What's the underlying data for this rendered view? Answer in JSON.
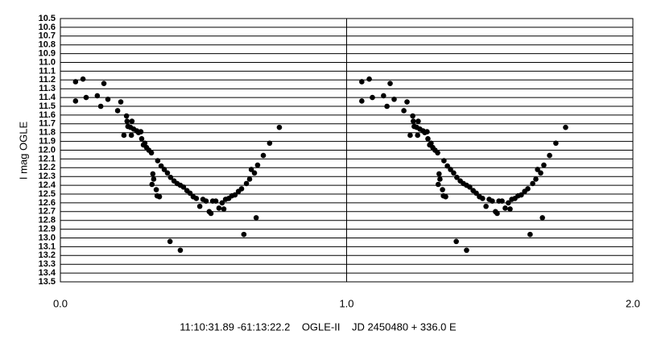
{
  "chart_data": {
    "type": "scatter",
    "xlabel": "11:10:31.89 -61:13:22.2    OGLE-II    JD 2450480 + 336.0 E",
    "ylabel": "I mag OGLE",
    "color": "#000000",
    "grid": true,
    "xlim": [
      0,
      2
    ],
    "xticks": [
      {
        "value": 0,
        "label": "0.0"
      },
      {
        "value": 1,
        "label": "1.0"
      },
      {
        "value": 2,
        "label": "2.0"
      }
    ],
    "ylim": [
      13.5,
      10.5
    ],
    "yticks": [
      10.5,
      10.6,
      10.7,
      10.8,
      10.9,
      {
        "value": 11,
        "label": "11.0"
      },
      11.1,
      11.2,
      11.3,
      11.4,
      11.5,
      11.6,
      11.7,
      11.8,
      11.9,
      {
        "value": 12,
        "label": "12.0"
      },
      12.1,
      12.2,
      12.3,
      12.4,
      12.5,
      12.6,
      12.7,
      12.8,
      12.9,
      {
        "value": 13,
        "label": "13.0"
      },
      13.1,
      13.2,
      13.3,
      13.4,
      13.5
    ],
    "x": [
      0.053,
      0.053,
      0.079,
      0.09,
      0.129,
      0.141,
      0.152,
      0.166,
      0.2,
      0.211,
      0.222,
      0.231,
      0.233,
      0.236,
      0.245,
      0.25,
      0.256,
      0.248,
      0.267,
      0.273,
      0.281,
      0.284,
      0.29,
      0.295,
      0.301,
      0.309,
      0.318,
      0.323,
      0.326,
      0.335,
      0.338,
      0.346,
      0.32,
      0.34,
      0.352,
      0.363,
      0.374,
      0.385,
      0.397,
      0.408,
      0.419,
      0.43,
      0.442,
      0.453,
      0.383,
      0.419,
      0.464,
      0.475,
      0.487,
      0.498,
      0.509,
      0.52,
      0.526,
      0.532,
      0.543,
      0.554,
      0.565,
      0.571,
      0.577,
      0.588,
      0.599,
      0.61,
      0.622,
      0.633,
      0.641,
      0.65,
      0.661,
      0.667,
      0.678,
      0.684,
      0.689,
      0.709,
      0.731,
      0.765,
      1.053,
      1.053,
      1.079,
      1.09,
      1.129,
      1.141,
      1.152,
      1.166,
      1.2,
      1.211,
      1.222,
      1.231,
      1.233,
      1.236,
      1.245,
      1.25,
      1.256,
      1.248,
      1.267,
      1.273,
      1.281,
      1.284,
      1.29,
      1.295,
      1.301,
      1.309,
      1.318,
      1.323,
      1.326,
      1.335,
      1.338,
      1.346,
      1.32,
      1.34,
      1.352,
      1.363,
      1.374,
      1.385,
      1.397,
      1.408,
      1.419,
      1.43,
      1.442,
      1.453,
      1.383,
      1.419,
      1.464,
      1.475,
      1.487,
      1.498,
      1.509,
      1.52,
      1.526,
      1.532,
      1.543,
      1.554,
      1.565,
      1.571,
      1.577,
      1.588,
      1.599,
      1.61,
      1.622,
      1.633,
      1.641,
      1.65,
      1.661,
      1.667,
      1.678,
      1.684,
      1.689,
      1.709,
      1.731,
      1.765
    ],
    "values": [
      11.22,
      11.44,
      11.19,
      11.4,
      11.38,
      11.5,
      11.24,
      11.42,
      11.55,
      11.45,
      11.83,
      11.61,
      11.67,
      11.73,
      11.74,
      11.67,
      11.76,
      11.83,
      11.78,
      11.8,
      11.79,
      11.87,
      11.94,
      11.92,
      11.97,
      12.0,
      12.03,
      12.27,
      12.33,
      12.45,
      12.52,
      12.53,
      12.39,
      12.12,
      12.18,
      12.22,
      12.26,
      12.31,
      12.35,
      12.38,
      12.4,
      12.42,
      12.46,
      12.49,
      13.04,
      13.14,
      12.53,
      12.55,
      12.64,
      12.56,
      12.58,
      12.7,
      12.72,
      12.58,
      12.58,
      12.66,
      12.6,
      12.67,
      12.56,
      12.55,
      12.52,
      12.51,
      12.47,
      12.44,
      12.96,
      12.38,
      12.33,
      12.22,
      12.26,
      12.77,
      12.17,
      12.06,
      11.92,
      11.74,
      11.22,
      11.44,
      11.19,
      11.4,
      11.38,
      11.5,
      11.24,
      11.42,
      11.55,
      11.45,
      11.83,
      11.61,
      11.67,
      11.73,
      11.74,
      11.67,
      11.76,
      11.83,
      11.78,
      11.8,
      11.79,
      11.87,
      11.94,
      11.92,
      11.97,
      12.0,
      12.03,
      12.27,
      12.33,
      12.45,
      12.52,
      12.53,
      12.39,
      12.12,
      12.18,
      12.22,
      12.26,
      12.31,
      12.35,
      12.38,
      12.4,
      12.42,
      12.46,
      12.49,
      13.04,
      13.14,
      12.53,
      12.55,
      12.64,
      12.56,
      12.58,
      12.7,
      12.72,
      12.58,
      12.58,
      12.66,
      12.6,
      12.67,
      12.56,
      12.55,
      12.52,
      12.51,
      12.47,
      12.44,
      12.96,
      12.38,
      12.33,
      12.22,
      12.26,
      12.77,
      12.17,
      12.06,
      11.92,
      11.74
    ]
  }
}
